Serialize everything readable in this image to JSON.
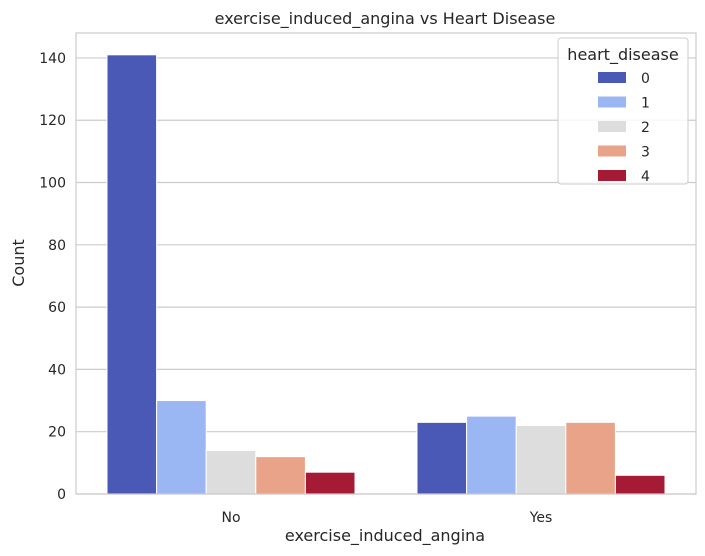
{
  "chart_data": {
    "type": "bar",
    "title": "exercise_induced_angina vs Heart Disease",
    "xlabel": "exercise_induced_angina",
    "ylabel": "Count",
    "categories": [
      "No",
      "Yes"
    ],
    "ylim": [
      0,
      148
    ],
    "yticks": [
      0,
      20,
      40,
      60,
      80,
      100,
      120,
      140
    ],
    "grid": true,
    "legend": {
      "title": "heart_disease",
      "placement": "top-right"
    },
    "series": [
      {
        "name": "0",
        "color": "#4a59b5",
        "values": [
          141,
          23
        ]
      },
      {
        "name": "1",
        "color": "#9bb7f3",
        "values": [
          30,
          25
        ]
      },
      {
        "name": "2",
        "color": "#dddddd",
        "values": [
          14,
          22
        ]
      },
      {
        "name": "3",
        "color": "#e9a388",
        "values": [
          12,
          23
        ]
      },
      {
        "name": "4",
        "color": "#a51b35",
        "values": [
          7,
          6
        ]
      }
    ]
  }
}
